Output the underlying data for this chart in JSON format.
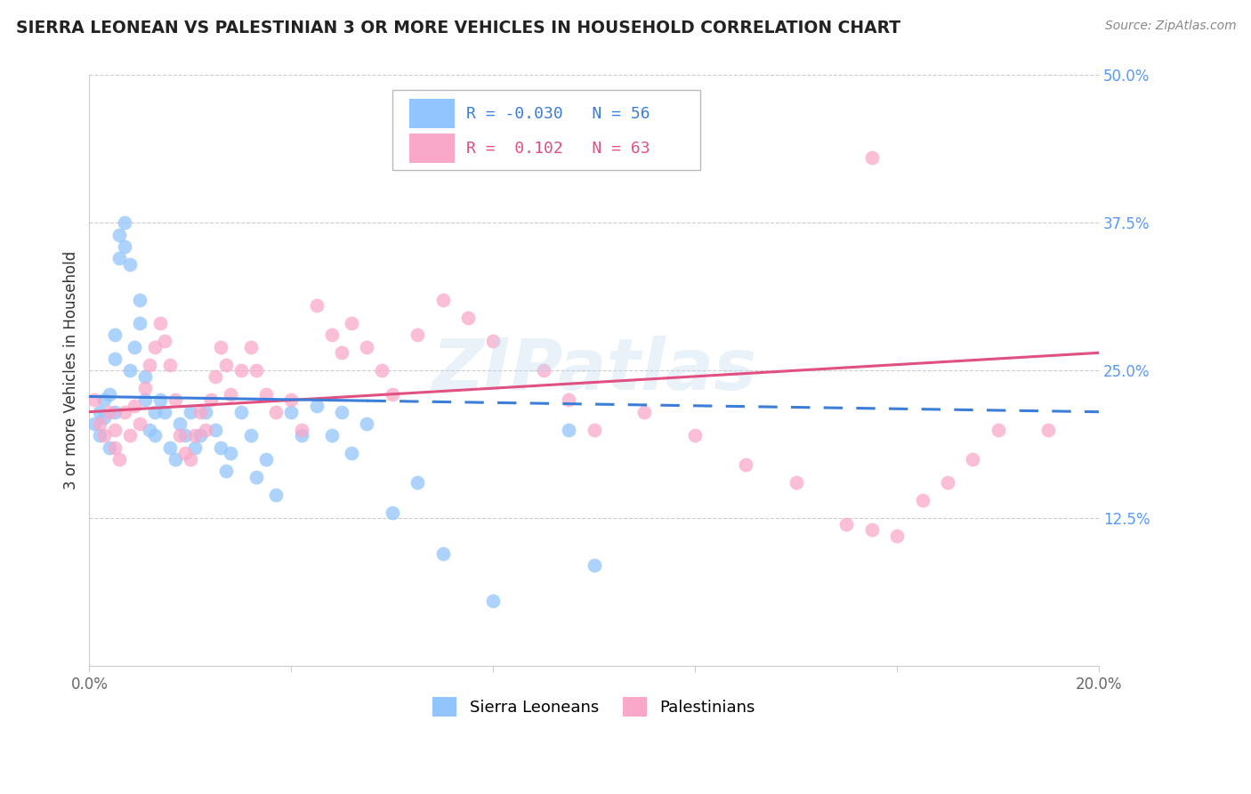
{
  "title": "SIERRA LEONEAN VS PALESTINIAN 3 OR MORE VEHICLES IN HOUSEHOLD CORRELATION CHART",
  "source": "Source: ZipAtlas.com",
  "ylabel_label": "3 or more Vehicles in Household",
  "xlim": [
    0.0,
    0.2
  ],
  "ylim": [
    0.0,
    0.5
  ],
  "sierra_leonean_R": -0.03,
  "sierra_leonean_N": 56,
  "palestinian_R": 0.102,
  "palestinian_N": 63,
  "sierra_color": "#92c5fd",
  "palestinian_color": "#f9a8c9",
  "sierra_color_line": "#3b7dd8",
  "palestinian_color_line": "#e05080",
  "watermark": "ZIPatlas",
  "sierra_x": [
    0.001,
    0.002,
    0.002,
    0.003,
    0.003,
    0.004,
    0.004,
    0.005,
    0.005,
    0.005,
    0.006,
    0.006,
    0.007,
    0.007,
    0.008,
    0.008,
    0.009,
    0.01,
    0.01,
    0.011,
    0.011,
    0.012,
    0.013,
    0.013,
    0.014,
    0.015,
    0.016,
    0.017,
    0.018,
    0.019,
    0.02,
    0.021,
    0.022,
    0.023,
    0.025,
    0.026,
    0.027,
    0.028,
    0.03,
    0.032,
    0.033,
    0.035,
    0.037,
    0.04,
    0.042,
    0.045,
    0.048,
    0.05,
    0.052,
    0.055,
    0.06,
    0.065,
    0.07,
    0.08,
    0.095,
    0.1
  ],
  "sierra_y": [
    0.205,
    0.215,
    0.195,
    0.225,
    0.21,
    0.23,
    0.185,
    0.28,
    0.26,
    0.215,
    0.345,
    0.365,
    0.375,
    0.355,
    0.34,
    0.25,
    0.27,
    0.29,
    0.31,
    0.245,
    0.225,
    0.2,
    0.215,
    0.195,
    0.225,
    0.215,
    0.185,
    0.175,
    0.205,
    0.195,
    0.215,
    0.185,
    0.195,
    0.215,
    0.2,
    0.185,
    0.165,
    0.18,
    0.215,
    0.195,
    0.16,
    0.175,
    0.145,
    0.215,
    0.195,
    0.22,
    0.195,
    0.215,
    0.18,
    0.205,
    0.13,
    0.155,
    0.095,
    0.055,
    0.2,
    0.085
  ],
  "palestinian_x": [
    0.001,
    0.002,
    0.003,
    0.004,
    0.005,
    0.005,
    0.006,
    0.007,
    0.008,
    0.009,
    0.01,
    0.011,
    0.012,
    0.013,
    0.014,
    0.015,
    0.016,
    0.017,
    0.018,
    0.019,
    0.02,
    0.021,
    0.022,
    0.023,
    0.024,
    0.025,
    0.026,
    0.027,
    0.028,
    0.03,
    0.032,
    0.033,
    0.035,
    0.037,
    0.04,
    0.042,
    0.045,
    0.048,
    0.05,
    0.052,
    0.055,
    0.058,
    0.06,
    0.065,
    0.07,
    0.075,
    0.08,
    0.09,
    0.095,
    0.1,
    0.11,
    0.12,
    0.13,
    0.14,
    0.15,
    0.155,
    0.16,
    0.17,
    0.175,
    0.18,
    0.155,
    0.165,
    0.19
  ],
  "palestinian_y": [
    0.225,
    0.205,
    0.195,
    0.215,
    0.2,
    0.185,
    0.175,
    0.215,
    0.195,
    0.22,
    0.205,
    0.235,
    0.255,
    0.27,
    0.29,
    0.275,
    0.255,
    0.225,
    0.195,
    0.18,
    0.175,
    0.195,
    0.215,
    0.2,
    0.225,
    0.245,
    0.27,
    0.255,
    0.23,
    0.25,
    0.27,
    0.25,
    0.23,
    0.215,
    0.225,
    0.2,
    0.305,
    0.28,
    0.265,
    0.29,
    0.27,
    0.25,
    0.23,
    0.28,
    0.31,
    0.295,
    0.275,
    0.25,
    0.225,
    0.2,
    0.215,
    0.195,
    0.17,
    0.155,
    0.12,
    0.115,
    0.11,
    0.155,
    0.175,
    0.2,
    0.43,
    0.14,
    0.2
  ]
}
